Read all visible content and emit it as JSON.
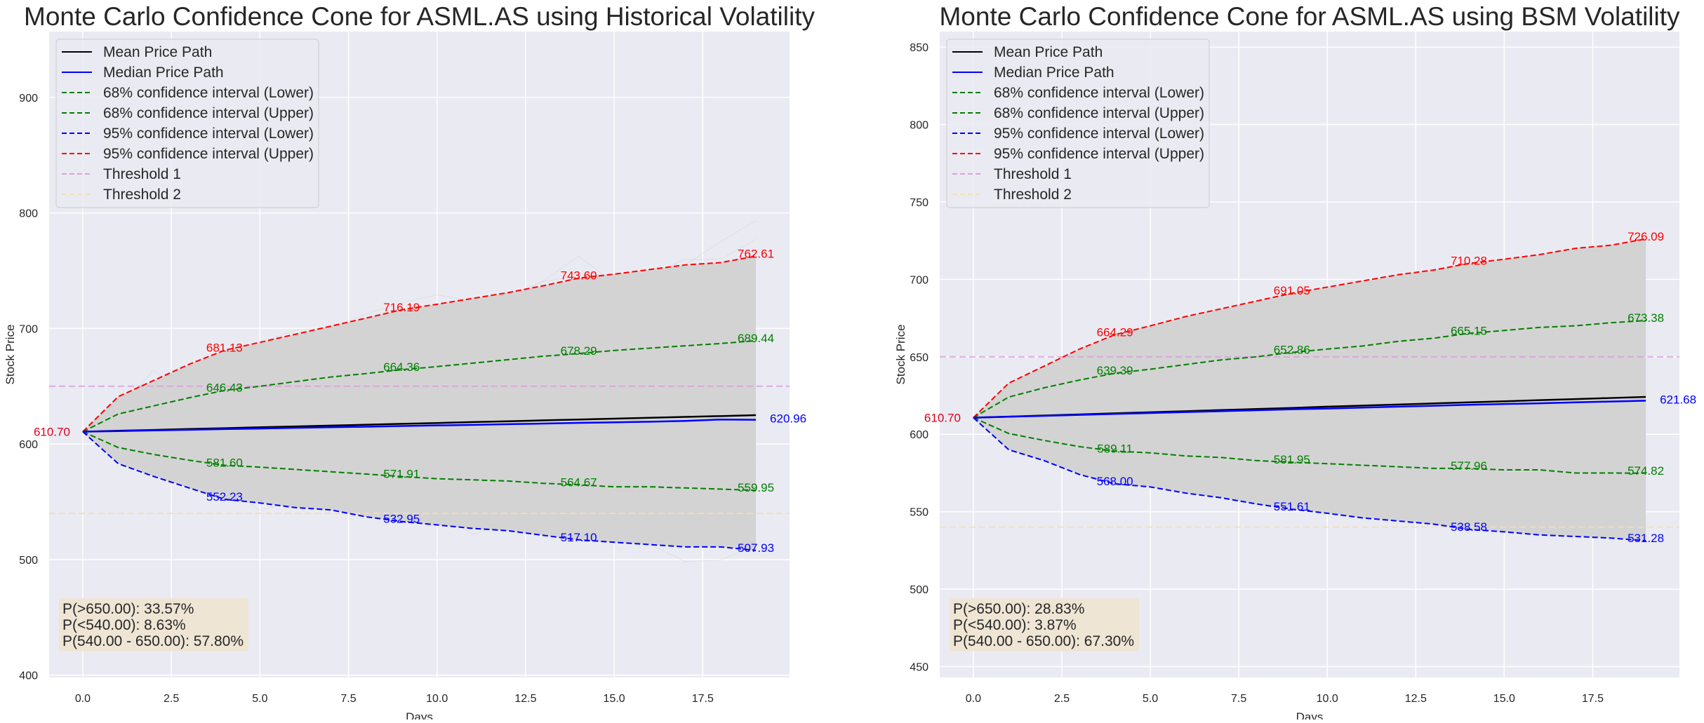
{
  "colors": {
    "background": "#eaeaf2",
    "grid": "#ffffff",
    "mean": "#000000",
    "median": "#0000ff",
    "ci68": "#008000",
    "ci95_lower": "#0000ff",
    "ci95_upper": "#ff0000",
    "threshold1": "#dda0dd",
    "threshold2": "#f5deb3",
    "cone_fill": "#d3d3d3",
    "prob_box": "#f0e4d2"
  },
  "chart_data": [
    {
      "type": "line",
      "title": "Monte Carlo Confidence Cone for ASML.AS using Historical Volatility",
      "xlabel": "Days",
      "ylabel": "Stock Price",
      "xlim": [
        -0.95,
        19.95
      ],
      "ylim": [
        398,
        957
      ],
      "xticks": [
        "0.0",
        "2.5",
        "5.0",
        "7.5",
        "10.0",
        "12.5",
        "15.0",
        "17.5"
      ],
      "yticks": [
        "400",
        "500",
        "600",
        "700",
        "800",
        "900"
      ],
      "grid": true,
      "legend_placement": "top-left",
      "start_label": "610.70",
      "end_label": "620.96",
      "x": [
        0,
        1,
        2,
        3,
        4,
        5,
        6,
        7,
        8,
        9,
        10,
        11,
        12,
        13,
        14,
        15,
        16,
        17,
        18,
        19
      ],
      "series": [
        {
          "name": "Mean Price Path",
          "style": "solid",
          "color": "#000000",
          "values": [
            610.7,
            611.5,
            612.2,
            613.0,
            613.7,
            614.5,
            615.2,
            616.0,
            616.7,
            617.5,
            618.2,
            619.0,
            619.7,
            620.5,
            621.2,
            622.0,
            622.7,
            623.5,
            624.2,
            625.0
          ]
        },
        {
          "name": "Median Price Path",
          "style": "solid",
          "color": "#0000ff",
          "values": [
            610.7,
            611.2,
            611.8,
            612.3,
            612.9,
            613.4,
            614.0,
            614.5,
            615.0,
            615.6,
            616.1,
            616.6,
            617.2,
            617.7,
            618.3,
            618.8,
            619.3,
            620.0,
            621.2,
            620.96
          ]
        },
        {
          "name": "68% confidence interval (Lower)",
          "style": "dashed",
          "color": "#008000",
          "values": [
            610.7,
            597,
            591,
            586,
            581.6,
            580,
            578,
            576,
            574,
            571.91,
            570,
            569,
            568,
            566,
            564.67,
            563,
            563,
            562,
            561,
            559.95
          ],
          "labels": {
            "4": "581.60",
            "9": "571.91",
            "14": "564.67",
            "19": "559.95"
          }
        },
        {
          "name": "68% confidence interval (Upper)",
          "style": "dashed",
          "color": "#008000",
          "values": [
            610.7,
            626,
            633,
            640,
            646.43,
            650,
            654,
            658,
            661,
            664.36,
            667,
            670,
            673,
            676,
            678.29,
            681,
            683,
            685,
            687,
            689.44
          ],
          "labels": {
            "4": "646.43",
            "9": "664.36",
            "14": "678.29",
            "19": "689.44"
          }
        },
        {
          "name": "95% confidence interval (Lower)",
          "style": "dashed",
          "color": "#0000ff",
          "values": [
            610.7,
            583,
            572,
            562,
            552.23,
            549,
            545,
            543,
            537,
            532.95,
            530,
            527,
            525,
            521,
            517.1,
            515,
            513,
            511,
            511,
            507.93
          ],
          "labels": {
            "4": "552.23",
            "9": "532.95",
            "14": "517.10",
            "19": "507.93"
          }
        },
        {
          "name": "95% confidence interval (Upper)",
          "style": "dashed",
          "color": "#ff0000",
          "values": [
            610.7,
            641,
            655,
            669,
            681.13,
            688,
            695,
            702,
            709,
            716.19,
            721,
            726,
            731,
            737,
            743.6,
            747,
            751,
            755,
            757,
            762.61
          ],
          "labels": {
            "4": "681.13",
            "9": "716.19",
            "14": "743.60",
            "19": "762.61"
          }
        }
      ],
      "thresholds": [
        {
          "name": "Threshold 1",
          "value": 650,
          "color": "#dda0dd"
        },
        {
          "name": "Threshold 2",
          "value": 540,
          "color": "#f5deb3"
        }
      ],
      "probabilities": [
        "P(>650.00): 33.57%",
        "P(<540.00): 8.63%",
        "P(540.00 - 650.00): 57.80%"
      ],
      "sim_spread": 0.0155
    },
    {
      "type": "line",
      "title": "Monte Carlo Confidence Cone for ASML.AS using BSM Volatility",
      "xlabel": "Days",
      "ylabel": "Stock Price",
      "xlim": [
        -0.95,
        19.95
      ],
      "ylim": [
        443,
        860
      ],
      "xticks": [
        "0.0",
        "2.5",
        "5.0",
        "7.5",
        "10.0",
        "12.5",
        "15.0",
        "17.5"
      ],
      "yticks": [
        "450",
        "500",
        "550",
        "600",
        "650",
        "700",
        "750",
        "800",
        "850"
      ],
      "grid": true,
      "legend_placement": "top-left",
      "start_label": "610.70",
      "end_label": "621.68",
      "x": [
        0,
        1,
        2,
        3,
        4,
        5,
        6,
        7,
        8,
        9,
        10,
        11,
        12,
        13,
        14,
        15,
        16,
        17,
        18,
        19
      ],
      "series": [
        {
          "name": "Mean Price Path",
          "style": "solid",
          "color": "#000000",
          "values": [
            610.7,
            611.4,
            612.1,
            612.8,
            613.5,
            614.2,
            614.9,
            615.6,
            616.3,
            617.0,
            617.8,
            618.5,
            619.2,
            619.9,
            620.6,
            621.3,
            622.0,
            622.7,
            623.4,
            624.1
          ]
        },
        {
          "name": "Median Price Path",
          "style": "solid",
          "color": "#0000ff",
          "values": [
            610.7,
            611.3,
            611.9,
            612.5,
            613.1,
            613.7,
            614.3,
            614.9,
            615.5,
            616.1,
            616.6,
            617.2,
            617.8,
            618.4,
            619.0,
            619.5,
            620.0,
            620.6,
            621.1,
            621.68
          ]
        },
        {
          "name": "68% confidence interval (Lower)",
          "style": "dashed",
          "color": "#008000",
          "values": [
            610.7,
            600.5,
            596,
            592,
            589.11,
            588,
            586,
            585,
            583,
            581.95,
            581,
            580,
            579,
            578,
            577.96,
            577,
            577,
            575,
            575,
            574.82
          ],
          "labels": {
            "4": "589.11",
            "9": "581.95",
            "14": "577.96",
            "19": "574.82"
          }
        },
        {
          "name": "68% confidence interval (Upper)",
          "style": "dashed",
          "color": "#008000",
          "values": [
            610.7,
            624,
            630,
            635,
            639.39,
            642,
            645,
            648,
            650,
            652.86,
            655,
            657,
            660,
            662,
            665.15,
            667,
            669,
            670,
            672,
            673.38
          ],
          "labels": {
            "4": "639.39",
            "9": "652.86",
            "14": "665.15",
            "19": "673.38"
          }
        },
        {
          "name": "95% confidence interval (Lower)",
          "style": "dashed",
          "color": "#0000ff",
          "values": [
            610.7,
            590,
            583,
            574,
            568.0,
            566,
            562,
            559,
            555,
            551.61,
            549,
            546,
            544,
            542,
            538.58,
            537,
            535,
            534,
            533,
            531.28
          ],
          "labels": {
            "4": "568.00",
            "9": "551.61",
            "14": "538.58",
            "19": "531.28"
          }
        },
        {
          "name": "95% confidence interval (Upper)",
          "style": "dashed",
          "color": "#ff0000",
          "values": [
            610.7,
            633,
            644,
            655,
            664.29,
            670,
            676,
            681,
            686,
            691.05,
            695,
            699,
            703,
            706,
            710.28,
            713,
            716,
            720,
            722,
            726.09
          ],
          "labels": {
            "4": "664.29",
            "9": "691.05",
            "14": "710.28",
            "19": "726.09"
          }
        }
      ],
      "thresholds": [
        {
          "name": "Threshold 1",
          "value": 650,
          "color": "#dda0dd"
        },
        {
          "name": "Threshold 2",
          "value": 540,
          "color": "#f5deb3"
        }
      ],
      "probabilities": [
        "P(>650.00): 28.83%",
        "P(<540.00): 3.87%",
        "P(540.00 - 650.00): 67.30%"
      ],
      "sim_spread": 0.0115
    }
  ]
}
